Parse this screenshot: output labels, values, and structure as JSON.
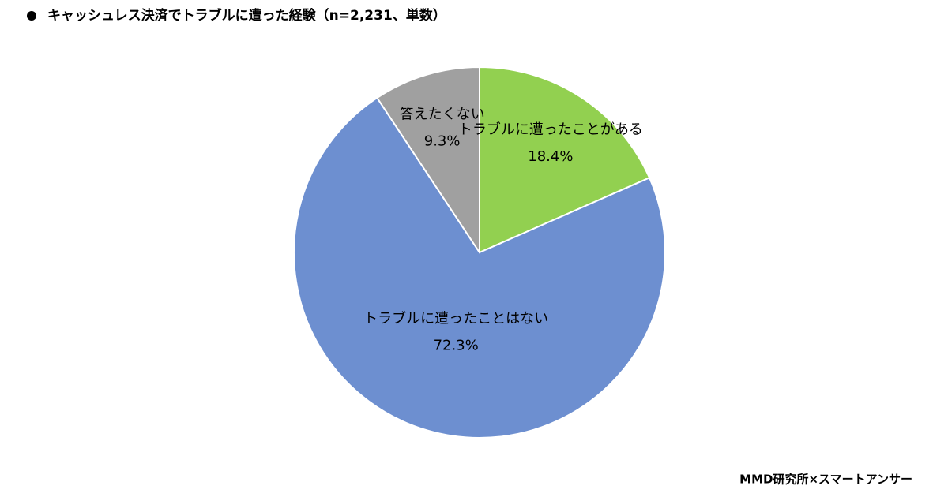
{
  "chart_data": {
    "type": "pie",
    "title": "キャッシュレス決済でトラブルに遭った経験（n=2,231、単数）",
    "source": "MMD研究所×スマートアンサー",
    "categories": [
      "トラブルに遭ったことがある",
      "トラブルに遭ったことはない",
      "答えたくない"
    ],
    "values": [
      18.4,
      72.3,
      9.3
    ],
    "value_labels": [
      "18.4%",
      "72.3%",
      "9.3%"
    ],
    "colors": [
      "#92d050",
      "#6d8fd0",
      "#a0a0a0"
    ]
  }
}
